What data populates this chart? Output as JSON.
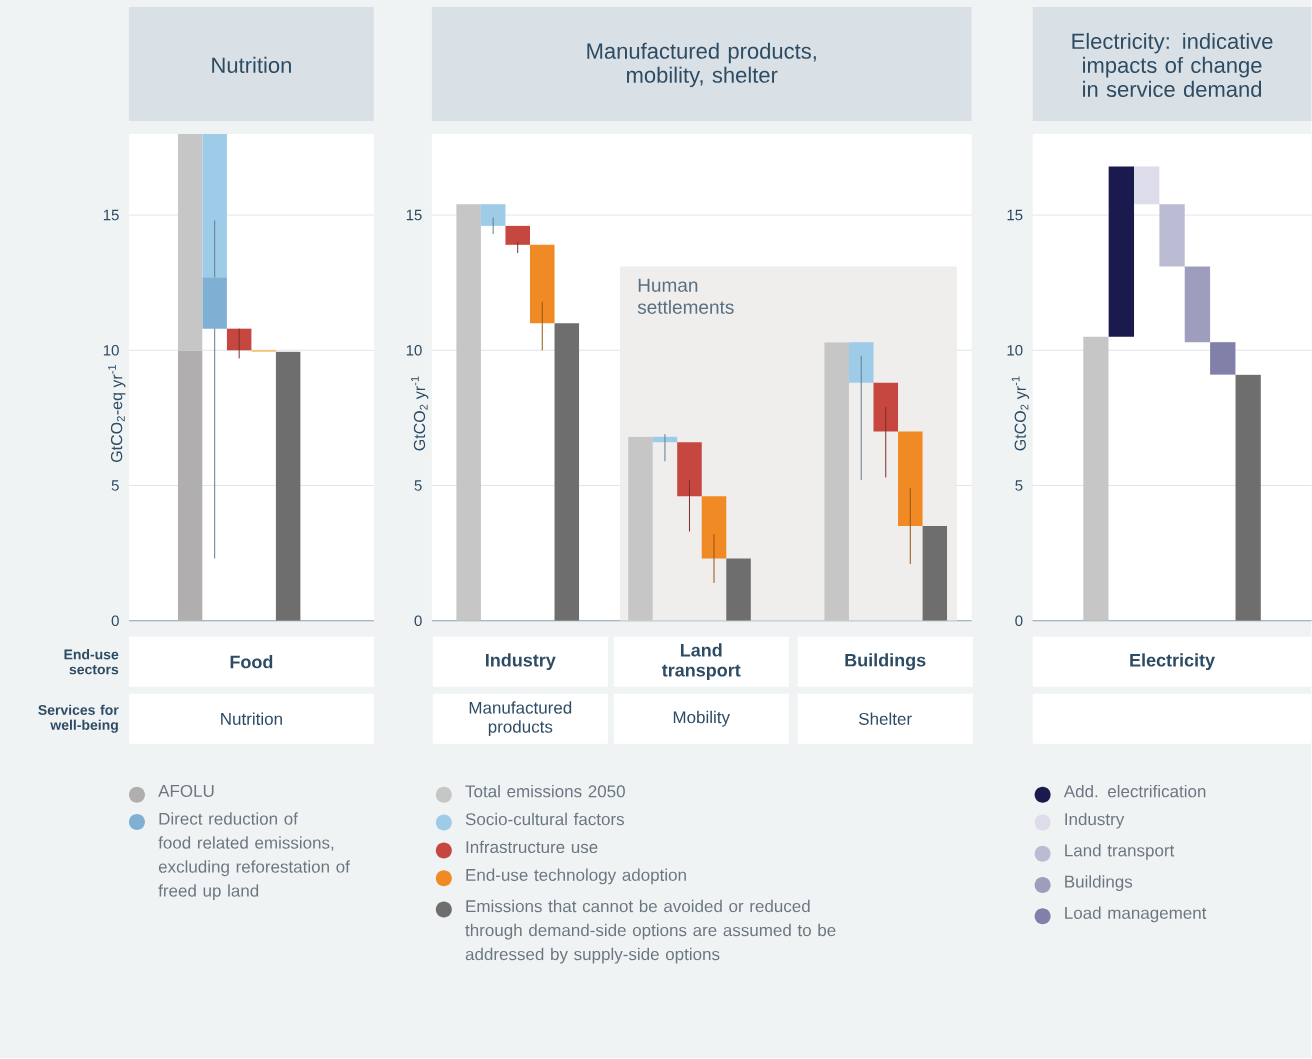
{
  "chart_data": [
    {
      "type": "bar",
      "title": "Nutrition",
      "ylabel": "GtCO$_{2}$-eq yr$^{-1}$",
      "categories": [
        null,
        null,
        null,
        null,
        null,
        null,
        null,
        null,
        null,
        null
      ],
      "ylim": [
        0,
        18
      ],
      "yticks": [
        0,
        5,
        10,
        15
      ],
      "grid": "y",
      "legend": "bottom",
      "series": [
        {
          "name": "AFOLU",
          "color": "#b0aeae",
          "values": [
            null,
            null,
            10.0,
            null,
            null,
            null,
            null,
            null,
            null,
            null
          ],
          "base": [
            null,
            null,
            0,
            null,
            null,
            null,
            null,
            null,
            null,
            null
          ]
        },
        {
          "color": "#c6c6c6",
          "values": [
            null,
            null,
            8.0,
            null,
            null,
            null,
            null,
            null,
            null,
            null
          ],
          "base": [
            null,
            null,
            10.0,
            null,
            null,
            null,
            null,
            null,
            null,
            null
          ]
        },
        {
          "color": "#9dcbe8",
          "values": [
            null,
            null,
            null,
            -5.3,
            null,
            null,
            null,
            null,
            null,
            null
          ],
          "base": [
            null,
            null,
            null,
            18.0,
            null,
            null,
            null,
            null,
            null,
            null
          ],
          "errors": [
            null,
            null,
            null,
            [
              2.3,
              14.8
            ],
            null,
            null,
            null,
            null,
            null,
            null
          ]
        },
        {
          "name": "Direct reduction of food related emissions, excluding reforestation of freed up land",
          "color": "#7fb0d3",
          "values": [
            null,
            null,
            null,
            -1.9,
            null,
            null,
            null,
            null,
            null,
            null
          ],
          "base": [
            null,
            null,
            null,
            12.7,
            null,
            null,
            null,
            null,
            null,
            null
          ]
        },
        {
          "color": "#c6473f",
          "values": [
            null,
            null,
            null,
            null,
            -0.8,
            null,
            null,
            null,
            null,
            null
          ],
          "base": [
            null,
            null,
            null,
            null,
            10.8,
            null,
            null,
            null,
            null,
            null
          ],
          "errors": [
            null,
            null,
            null,
            null,
            [
              9.7,
              10.8
            ],
            null,
            null,
            null,
            null,
            null
          ]
        },
        {
          "color": "#f2b646",
          "values": [
            null,
            null,
            null,
            null,
            null,
            -0.05,
            null,
            null,
            null,
            null
          ],
          "base": [
            null,
            null,
            null,
            null,
            null,
            10.0,
            null,
            null,
            null,
            null
          ]
        },
        {
          "color": "#6e6e6e",
          "values": [
            null,
            null,
            null,
            null,
            null,
            null,
            9.95,
            null,
            null,
            null
          ],
          "base": [
            null,
            null,
            null,
            null,
            null,
            null,
            0,
            null,
            null,
            null
          ]
        }
      ],
      "annotations": [
        "End-use sectors",
        "Services for well-being",
        "Food",
        "Nutrition"
      ]
    },
    {
      "type": "bar",
      "title": "Manufactured products, mobility, shelter",
      "ylabel": "GtCO$_{2}$ yr$^{-1}$",
      "categories": [
        null,
        null,
        null,
        null,
        null,
        null,
        null,
        null,
        null,
        null,
        null,
        null,
        null,
        null,
        null,
        null,
        null,
        null,
        null,
        null,
        null,
        null
      ],
      "ylim": [
        0,
        18
      ],
      "yticks": [
        0,
        5,
        10,
        15
      ],
      "grid": "y",
      "legend": "bottom",
      "series": [
        {
          "name": "Total emissions 2050",
          "color": "#c6c6c6",
          "values": [
            null,
            15.4,
            null,
            null,
            null,
            null,
            null,
            null,
            6.8,
            null,
            null,
            null,
            null,
            null,
            null,
            null,
            10.3,
            null,
            null,
            null,
            null,
            null
          ],
          "base": [
            null,
            0,
            null,
            null,
            null,
            null,
            null,
            null,
            0,
            null,
            null,
            null,
            null,
            null,
            null,
            null,
            0,
            null,
            null,
            null,
            null,
            null
          ]
        },
        {
          "name": "Socio-cultural factors",
          "color": "#9dcbe8",
          "values": [
            null,
            null,
            -0.8,
            null,
            null,
            null,
            null,
            null,
            null,
            -0.2,
            null,
            null,
            null,
            null,
            null,
            null,
            null,
            -1.5,
            null,
            null,
            null,
            null
          ],
          "base": [
            null,
            null,
            15.4,
            null,
            null,
            null,
            null,
            null,
            null,
            6.8,
            null,
            null,
            null,
            null,
            null,
            null,
            null,
            10.3,
            null,
            null,
            null,
            null
          ],
          "errors": [
            null,
            null,
            [
              14.3,
              14.9
            ],
            null,
            null,
            null,
            null,
            null,
            null,
            [
              5.9,
              6.9
            ],
            null,
            null,
            null,
            null,
            null,
            null,
            null,
            [
              5.2,
              9.8
            ],
            null,
            null,
            null,
            null
          ]
        },
        {
          "name": "Infrastructure use",
          "color": "#c6473f",
          "values": [
            null,
            null,
            null,
            -0.7,
            null,
            null,
            null,
            null,
            null,
            null,
            -2.0,
            null,
            null,
            null,
            null,
            null,
            null,
            null,
            -1.8,
            null,
            null,
            null
          ],
          "base": [
            null,
            null,
            null,
            14.6,
            null,
            null,
            null,
            null,
            null,
            null,
            6.6,
            null,
            null,
            null,
            null,
            null,
            null,
            null,
            8.8,
            null,
            null,
            null
          ],
          "errors": [
            null,
            null,
            null,
            [
              13.6,
              14.0
            ],
            null,
            null,
            null,
            null,
            null,
            null,
            [
              3.3,
              5.2
            ],
            null,
            null,
            null,
            null,
            null,
            null,
            null,
            [
              5.3,
              7.9
            ],
            null,
            null,
            null
          ]
        },
        {
          "name": "End-use technology adoption",
          "color": "#f08a24",
          "values": [
            null,
            null,
            null,
            null,
            -2.9,
            null,
            null,
            null,
            null,
            null,
            null,
            -2.3,
            null,
            null,
            null,
            null,
            null,
            null,
            null,
            -3.5,
            null,
            null
          ],
          "base": [
            null,
            null,
            null,
            null,
            13.9,
            null,
            null,
            null,
            null,
            null,
            null,
            4.6,
            null,
            null,
            null,
            null,
            null,
            null,
            null,
            7.0,
            null,
            null
          ],
          "errors": [
            null,
            null,
            null,
            null,
            [
              10.0,
              11.8
            ],
            null,
            null,
            null,
            null,
            null,
            null,
            [
              1.4,
              3.2
            ],
            null,
            null,
            null,
            null,
            null,
            null,
            null,
            [
              2.1,
              4.9
            ],
            null,
            null
          ]
        },
        {
          "name": "Emissions that cannot be avoided or reduced through demand-side options are assumed to be addressed by supply-side options",
          "color": "#6e6e6e",
          "values": [
            null,
            null,
            null,
            null,
            null,
            11.0,
            null,
            null,
            null,
            null,
            null,
            null,
            2.3,
            null,
            null,
            null,
            null,
            null,
            null,
            null,
            3.5,
            null
          ],
          "base": [
            null,
            null,
            null,
            null,
            null,
            0,
            null,
            null,
            null,
            null,
            null,
            null,
            0,
            null,
            null,
            null,
            null,
            null,
            null,
            null,
            0,
            null
          ]
        }
      ],
      "annotations": [
        "Industry",
        "Land transport",
        "Buildings",
        "Manufactured products",
        "Mobility",
        "Shelter",
        "Human settlements"
      ]
    },
    {
      "type": "bar",
      "title": "Electricity: indicative impacts of change in service demand",
      "ylabel": "GtCO$_{2}$ yr$^{-1}$",
      "categories": [
        null,
        null,
        null,
        null,
        null,
        null,
        null,
        null,
        null,
        null,
        null
      ],
      "ylim": [
        0,
        18
      ],
      "yticks": [
        0,
        5,
        10,
        15
      ],
      "grid": "y",
      "legend": "bottom",
      "series": [
        {
          "color": "#c6c6c6",
          "values": [
            null,
            null,
            10.5,
            null,
            null,
            null,
            null,
            null,
            null,
            null,
            null
          ],
          "base": [
            null,
            null,
            0,
            null,
            null,
            null,
            null,
            null,
            null,
            null,
            null
          ]
        },
        {
          "name": "Add. electrification",
          "color": "#1b1a4e",
          "values": [
            null,
            null,
            null,
            6.3,
            null,
            null,
            null,
            null,
            null,
            null,
            null
          ],
          "base": [
            null,
            null,
            null,
            10.5,
            null,
            null,
            null,
            null,
            null,
            null,
            null
          ]
        },
        {
          "name": "Industry",
          "color": "#dddcea",
          "values": [
            null,
            null,
            null,
            null,
            -1.4,
            null,
            null,
            null,
            null,
            null,
            null
          ],
          "base": [
            null,
            null,
            null,
            null,
            16.8,
            null,
            null,
            null,
            null,
            null,
            null
          ]
        },
        {
          "name": "Land transport",
          "color": "#bbbbd4",
          "values": [
            null,
            null,
            null,
            null,
            null,
            -2.3,
            null,
            null,
            null,
            null,
            null
          ],
          "base": [
            null,
            null,
            null,
            null,
            null,
            15.4,
            null,
            null,
            null,
            null,
            null
          ]
        },
        {
          "name": "Buildings",
          "color": "#9f9dbd",
          "values": [
            null,
            null,
            null,
            null,
            null,
            null,
            -2.8,
            null,
            null,
            null,
            null
          ],
          "base": [
            null,
            null,
            null,
            null,
            null,
            null,
            13.1,
            null,
            null,
            null,
            null
          ]
        },
        {
          "name": "Load management",
          "color": "#8080a8",
          "values": [
            null,
            null,
            null,
            null,
            null,
            null,
            null,
            -1.2,
            null,
            null,
            null
          ],
          "base": [
            null,
            null,
            null,
            null,
            null,
            null,
            null,
            10.3,
            null,
            null,
            null
          ]
        },
        {
          "color": "#6e6e6e",
          "values": [
            null,
            null,
            null,
            null,
            null,
            null,
            null,
            null,
            9.1,
            null,
            null
          ],
          "base": [
            null,
            null,
            null,
            null,
            null,
            null,
            null,
            null,
            0,
            null,
            null
          ]
        }
      ],
      "annotations": [
        "Electricity"
      ]
    }
  ]
}
